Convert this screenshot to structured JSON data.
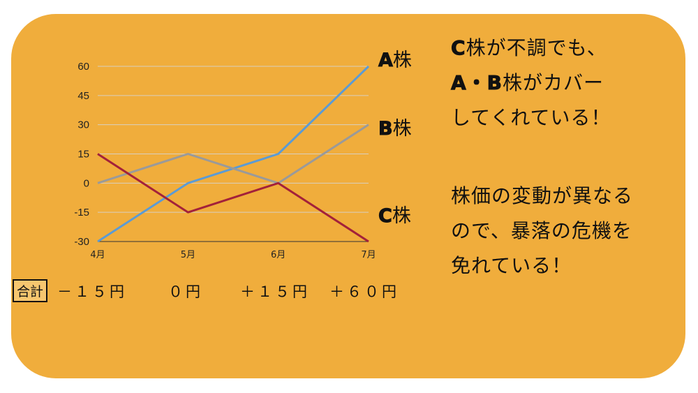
{
  "chart_data": {
    "type": "line",
    "categories": [
      "4月",
      "5月",
      "6月",
      "7月"
    ],
    "ylim": [
      -30,
      60
    ],
    "yticks": [
      60,
      45,
      30,
      15,
      0,
      -15,
      -30
    ],
    "grid": true,
    "series": [
      {
        "name": "A株",
        "values": [
          -30,
          0,
          15,
          60
        ],
        "color": "#5b9bd5"
      },
      {
        "name": "B株",
        "values": [
          0,
          15,
          0,
          30
        ],
        "color": "#9a9a9a"
      },
      {
        "name": "C株",
        "values": [
          15,
          -15,
          0,
          -30
        ],
        "color": "#a3213a"
      }
    ]
  },
  "series_labels": {
    "a": {
      "letter": "A",
      "rest": "株"
    },
    "b": {
      "letter": "B",
      "rest": "株"
    },
    "c": {
      "letter": "C",
      "rest": "株"
    }
  },
  "totals": {
    "label": "合計",
    "values": [
      "－１５円",
      "０円",
      "＋１５円",
      "＋６０円"
    ]
  },
  "notes": {
    "note1": {
      "line1_strong": "C",
      "line1_rest": "株が不調でも、",
      "line2_strong": "A・B",
      "line2_rest": "株がカバー",
      "line3": "してくれている！"
    },
    "note2": {
      "line1": "株価の変動が異なる",
      "line2": "ので、暴落の危機を",
      "line3": "免れている！"
    }
  }
}
